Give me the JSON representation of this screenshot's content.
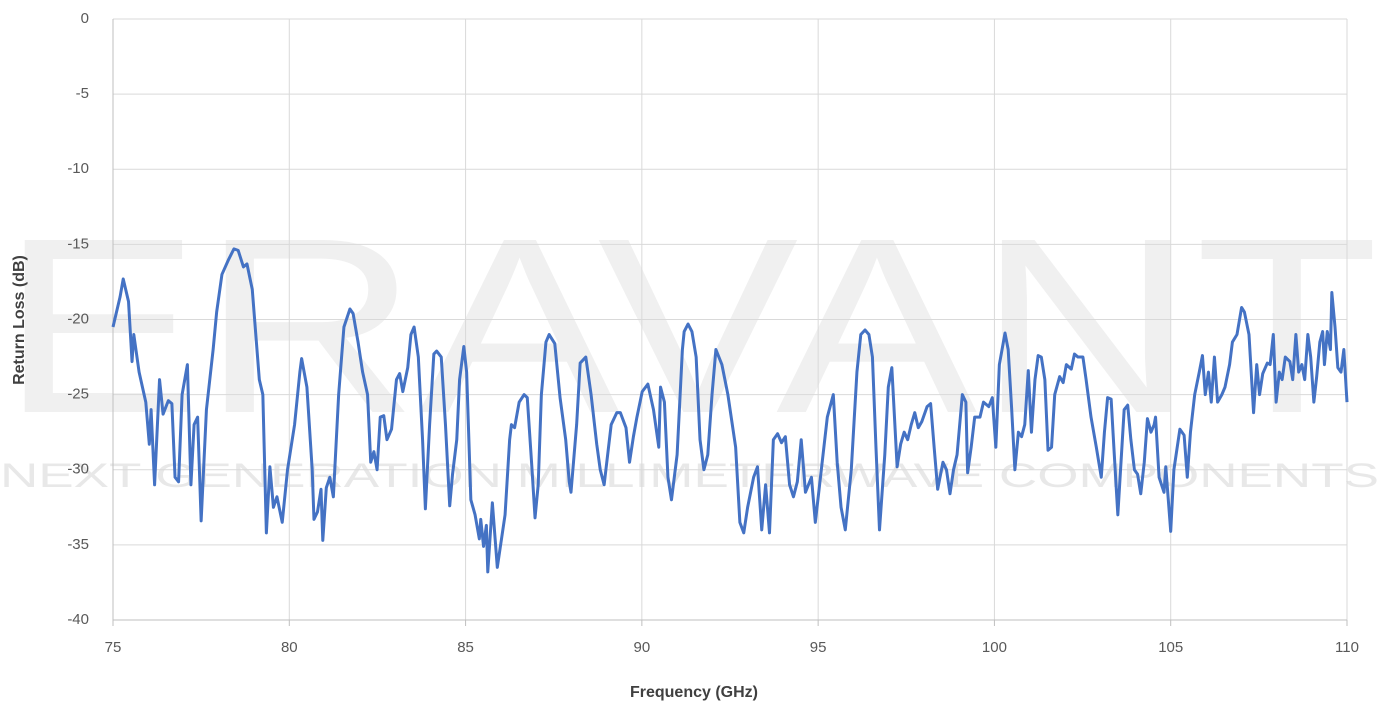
{
  "chart_data": {
    "type": "line",
    "watermark": "ERAVANT",
    "watermark_subtitle": "NEXT GENERATION MILLIMETERWAVE COMPONENTS",
    "x_label": "Frequency (GHz)",
    "y_label": "Return Loss (dB)",
    "xlim": [
      75,
      110
    ],
    "xticks": [
      75,
      80,
      85,
      90,
      95,
      100,
      105,
      110
    ],
    "ylim": [
      -40,
      0
    ],
    "yticks": [
      -40,
      -35,
      -30,
      -25,
      -20,
      -15,
      -10,
      -5,
      0
    ],
    "grid": true,
    "x": [
      75.0,
      75.2,
      75.29,
      75.44,
      75.54,
      75.59,
      75.74,
      75.93,
      76.03,
      76.08,
      76.18,
      76.32,
      76.42,
      76.57,
      76.67,
      76.76,
      76.86,
      76.96,
      77.11,
      77.21,
      77.3,
      77.4,
      77.5,
      77.65,
      77.84,
      77.94,
      78.09,
      78.28,
      78.43,
      78.55,
      78.7,
      78.8,
      78.95,
      79.15,
      79.25,
      79.35,
      79.45,
      79.55,
      79.65,
      79.8,
      79.95,
      80.15,
      80.3,
      80.35,
      80.5,
      80.65,
      80.7,
      80.8,
      80.9,
      80.95,
      81.05,
      81.15,
      81.25,
      81.4,
      81.55,
      81.72,
      81.81,
      81.95,
      82.08,
      82.22,
      82.31,
      82.4,
      82.49,
      82.58,
      82.68,
      82.77,
      82.9,
      83.04,
      83.13,
      83.22,
      83.36,
      83.45,
      83.54,
      83.66,
      83.78,
      83.86,
      83.98,
      84.1,
      84.18,
      84.31,
      84.43,
      84.55,
      84.63,
      84.75,
      84.83,
      84.95,
      85.03,
      85.15,
      85.27,
      85.39,
      85.43,
      85.51,
      85.59,
      85.63,
      85.76,
      85.9,
      86.12,
      86.25,
      86.3,
      86.39,
      86.52,
      86.66,
      86.75,
      86.88,
      86.97,
      87.06,
      87.15,
      87.28,
      87.37,
      87.53,
      87.68,
      87.84,
      87.94,
      87.99,
      88.15,
      88.25,
      88.41,
      88.56,
      88.72,
      88.82,
      88.93,
      89.03,
      89.13,
      89.29,
      89.39,
      89.55,
      89.65,
      89.76,
      89.86,
      90.01,
      90.17,
      90.33,
      90.48,
      90.53,
      90.64,
      90.74,
      90.84,
      91.0,
      91.15,
      91.2,
      91.31,
      91.42,
      91.54,
      91.65,
      91.76,
      91.87,
      91.99,
      92.1,
      92.27,
      92.44,
      92.66,
      92.78,
      92.89,
      93.0,
      93.17,
      93.28,
      93.4,
      93.51,
      93.62,
      93.73,
      93.85,
      93.96,
      94.07,
      94.19,
      94.3,
      94.41,
      94.52,
      94.64,
      94.81,
      94.92,
      95.09,
      95.26,
      95.43,
      95.54,
      95.65,
      95.77,
      95.94,
      96.1,
      96.21,
      96.33,
      96.44,
      96.54,
      96.64,
      96.74,
      96.89,
      96.99,
      97.09,
      97.24,
      97.34,
      97.44,
      97.54,
      97.64,
      97.74,
      97.84,
      97.94,
      98.09,
      98.19,
      98.29,
      98.39,
      98.54,
      98.64,
      98.74,
      98.84,
      98.94,
      99.09,
      99.19,
      99.24,
      99.34,
      99.44,
      99.59,
      99.69,
      99.84,
      99.94,
      100.04,
      100.14,
      100.3,
      100.39,
      100.49,
      100.58,
      100.68,
      100.77,
      100.86,
      100.96,
      101.05,
      101.15,
      101.24,
      101.33,
      101.43,
      101.52,
      101.62,
      101.71,
      101.85,
      101.95,
      102.04,
      102.18,
      102.27,
      102.37,
      102.51,
      102.6,
      102.74,
      102.89,
      103.03,
      103.12,
      103.21,
      103.31,
      103.4,
      103.5,
      103.59,
      103.68,
      103.78,
      103.87,
      103.97,
      104.06,
      104.15,
      104.25,
      104.34,
      104.44,
      104.53,
      104.57,
      104.67,
      104.81,
      104.86,
      105.0,
      105.09,
      105.26,
      105.38,
      105.47,
      105.56,
      105.68,
      105.81,
      105.9,
      105.98,
      106.07,
      106.15,
      106.24,
      106.33,
      106.45,
      106.54,
      106.67,
      106.75,
      106.88,
      107.01,
      107.09,
      107.22,
      107.35,
      107.44,
      107.52,
      107.61,
      107.74,
      107.82,
      107.91,
      107.99,
      108.08,
      108.16,
      108.25,
      108.38,
      108.46,
      108.55,
      108.63,
      108.72,
      108.8,
      108.89,
      108.97,
      109.06,
      109.14,
      109.23,
      109.31,
      109.36,
      109.44,
      109.53,
      109.57,
      109.66,
      109.74,
      109.83,
      109.91,
      110.0
    ],
    "series": [
      {
        "name": "Return Loss",
        "color": "#4472c4",
        "values": [
          -20.5,
          -18.5,
          -17.3,
          -18.8,
          -22.8,
          -21.0,
          -23.5,
          -25.5,
          -28.3,
          -26.0,
          -31.0,
          -24.0,
          -26.3,
          -25.4,
          -25.6,
          -30.5,
          -30.8,
          -25.0,
          -23.0,
          -31.0,
          -27.0,
          -26.5,
          -33.4,
          -26.0,
          -22.0,
          -19.5,
          -17.0,
          -16.0,
          -15.3,
          -15.4,
          -16.5,
          -16.3,
          -18.0,
          -24.0,
          -25.0,
          -34.2,
          -29.8,
          -32.5,
          -31.8,
          -33.5,
          -30.0,
          -27.0,
          -23.5,
          -22.6,
          -24.5,
          -30.0,
          -33.3,
          -32.8,
          -31.3,
          -34.7,
          -31.2,
          -30.5,
          -31.8,
          -25.0,
          -20.5,
          -19.3,
          -19.6,
          -21.5,
          -23.5,
          -25.0,
          -29.5,
          -28.8,
          -30.0,
          -26.5,
          -26.4,
          -28.0,
          -27.3,
          -24.0,
          -23.6,
          -24.8,
          -23.2,
          -21.0,
          -20.5,
          -22.5,
          -28.0,
          -32.6,
          -27.0,
          -22.3,
          -22.1,
          -22.5,
          -27.0,
          -32.4,
          -30.3,
          -28.0,
          -24.0,
          -21.8,
          -23.5,
          -32.0,
          -33.0,
          -34.6,
          -33.3,
          -35.1,
          -33.7,
          -36.8,
          -32.2,
          -36.5,
          -33.0,
          -28.0,
          -27.0,
          -27.2,
          -25.5,
          -25.0,
          -25.2,
          -29.8,
          -33.2,
          -31.0,
          -25.0,
          -21.5,
          -21.0,
          -21.6,
          -25.2,
          -28.0,
          -30.8,
          -31.5,
          -27.0,
          -22.9,
          -22.5,
          -25.0,
          -28.3,
          -30.0,
          -31.0,
          -29.0,
          -27.0,
          -26.2,
          -26.2,
          -27.2,
          -29.5,
          -27.8,
          -26.5,
          -24.8,
          -24.3,
          -26.0,
          -28.5,
          -24.5,
          -25.5,
          -30.5,
          -32.0,
          -29.0,
          -22.0,
          -20.8,
          -20.3,
          -20.8,
          -22.5,
          -28.0,
          -30.0,
          -29.0,
          -25.0,
          -22.0,
          -23.0,
          -25.0,
          -28.5,
          -33.5,
          -34.2,
          -32.5,
          -30.5,
          -29.8,
          -34.0,
          -31.0,
          -34.2,
          -28.0,
          -27.6,
          -28.2,
          -27.8,
          -31.0,
          -31.8,
          -30.8,
          -28.0,
          -31.5,
          -30.5,
          -33.5,
          -30.0,
          -26.5,
          -25.0,
          -29.5,
          -32.5,
          -34.0,
          -30.0,
          -23.5,
          -21.0,
          -20.7,
          -21.0,
          -22.5,
          -28.5,
          -34.0,
          -29.0,
          -24.5,
          -23.2,
          -29.8,
          -28.3,
          -27.5,
          -28.0,
          -27.0,
          -26.2,
          -27.2,
          -26.8,
          -25.8,
          -25.6,
          -28.5,
          -31.3,
          -29.5,
          -30.0,
          -31.6,
          -30.0,
          -29.0,
          -25.0,
          -25.5,
          -30.2,
          -28.5,
          -26.5,
          -26.5,
          -25.5,
          -25.8,
          -25.2,
          -28.5,
          -23.0,
          -20.9,
          -22.0,
          -26.0,
          -30.0,
          -27.5,
          -27.8,
          -27.0,
          -23.4,
          -27.5,
          -24.0,
          -22.4,
          -22.5,
          -24.0,
          -28.7,
          -28.5,
          -25.0,
          -23.8,
          -24.2,
          -23.0,
          -23.3,
          -22.3,
          -22.5,
          -22.5,
          -24.0,
          -26.5,
          -28.5,
          -30.5,
          -27.5,
          -25.2,
          -25.3,
          -29.0,
          -33.0,
          -29.5,
          -26.0,
          -25.7,
          -28.0,
          -30.0,
          -30.3,
          -31.6,
          -29.5,
          -26.6,
          -27.5,
          -27.0,
          -26.5,
          -30.5,
          -31.5,
          -29.8,
          -34.1,
          -30.0,
          -27.3,
          -27.7,
          -30.5,
          -27.5,
          -25.0,
          -23.5,
          -22.4,
          -25.0,
          -23.5,
          -25.5,
          -22.5,
          -25.5,
          -25.0,
          -24.5,
          -23.0,
          -21.5,
          -21.0,
          -19.2,
          -19.5,
          -21.0,
          -26.2,
          -23.0,
          -25.0,
          -23.6,
          -22.9,
          -23.0,
          -21.0,
          -25.5,
          -23.5,
          -24.0,
          -22.5,
          -22.8,
          -24.0,
          -21.0,
          -23.5,
          -23.0,
          -24.0,
          -21.0,
          -22.5,
          -25.5,
          -23.8,
          -21.5,
          -20.8,
          -23.0,
          -20.8,
          -22.0,
          -18.2,
          -20.5,
          -23.2,
          -23.5,
          -22.0,
          -25.5
        ]
      }
    ]
  }
}
